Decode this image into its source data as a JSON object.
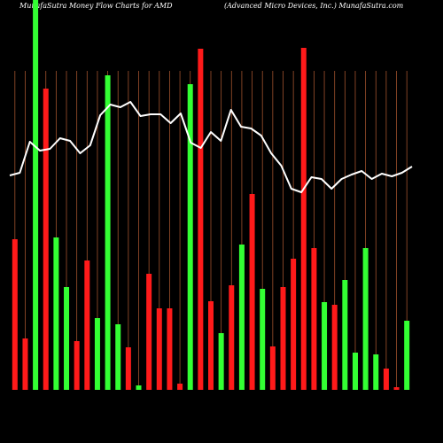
{
  "title_left": "MunafaSutra  Money Flow  Charts for AMD",
  "title_right": "(Advanced Micro  Devices,  Inc.) MunafaSutra.com",
  "colors": {
    "background": "#000000",
    "grid": "#a0522d",
    "up": "#33ff33",
    "down": "#ff1a1a",
    "line": "#ffffff"
  },
  "chart_data": {
    "type": "bar",
    "x_tick_labels": [
      "",
      "",
      "",
      "",
      "",
      "",
      "",
      "",
      "",
      "",
      "",
      "",
      "",
      "",
      "",
      "",
      "",
      "",
      "",
      "",
      "",
      "",
      "",
      "",
      "",
      "",
      "",
      "",
      "",
      "",
      "",
      "",
      "",
      "",
      "",
      "",
      "",
      "",
      "",
      "",
      "",
      "",
      "",
      "",
      "",
      "",
      "",
      "",
      "",
      ""
    ],
    "bars": [
      {
        "value": 170,
        "dir": "down"
      },
      {
        "value": 58,
        "dir": "down"
      },
      {
        "value": 440,
        "dir": "up"
      },
      {
        "value": 340,
        "dir": "down"
      },
      {
        "value": 172,
        "dir": "up"
      },
      {
        "value": 116,
        "dir": "up"
      },
      {
        "value": 55,
        "dir": "down"
      },
      {
        "value": 146,
        "dir": "down"
      },
      {
        "value": 81,
        "dir": "up"
      },
      {
        "value": 355,
        "dir": "up"
      },
      {
        "value": 74,
        "dir": "up"
      },
      {
        "value": 48,
        "dir": "down"
      },
      {
        "value": 5,
        "dir": "up"
      },
      {
        "value": 131,
        "dir": "down"
      },
      {
        "value": 92,
        "dir": "down"
      },
      {
        "value": 92,
        "dir": "down"
      },
      {
        "value": 7,
        "dir": "down"
      },
      {
        "value": 345,
        "dir": "up"
      },
      {
        "value": 385,
        "dir": "down"
      },
      {
        "value": 100,
        "dir": "down"
      },
      {
        "value": 64,
        "dir": "up"
      },
      {
        "value": 118,
        "dir": "down"
      },
      {
        "value": 164,
        "dir": "up"
      },
      {
        "value": 221,
        "dir": "down"
      },
      {
        "value": 114,
        "dir": "up"
      },
      {
        "value": 49,
        "dir": "down"
      },
      {
        "value": 116,
        "dir": "down"
      },
      {
        "value": 148,
        "dir": "down"
      },
      {
        "value": 386,
        "dir": "down"
      },
      {
        "value": 160,
        "dir": "down"
      },
      {
        "value": 99,
        "dir": "up"
      },
      {
        "value": 96,
        "dir": "down"
      },
      {
        "value": 124,
        "dir": "up"
      },
      {
        "value": 42,
        "dir": "up"
      },
      {
        "value": 160,
        "dir": "up"
      },
      {
        "value": 40,
        "dir": "up"
      },
      {
        "value": 24,
        "dir": "down"
      },
      {
        "value": 3,
        "dir": "down"
      },
      {
        "value": 78,
        "dir": "up"
      }
    ],
    "line": [
      242,
      245,
      280,
      270,
      272,
      284,
      281,
      267,
      276,
      310,
      322,
      319,
      325,
      309,
      311,
      311,
      301,
      312,
      279,
      273,
      291,
      281,
      316,
      297,
      295,
      287,
      267,
      253,
      227,
      223,
      240,
      238,
      227,
      238,
      243,
      247,
      238,
      244,
      241,
      245,
      252
    ],
    "ylim": [
      0,
      440
    ]
  }
}
